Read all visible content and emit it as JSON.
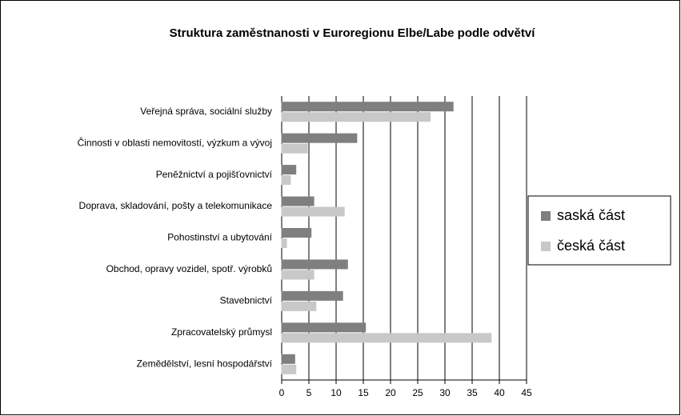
{
  "chart_data": {
    "type": "hbar",
    "title": "Struktura zaměstnanosti v Euroregionu Elbe/Labe podle odvětví",
    "categories": [
      "Veřejná správa, sociální služby",
      "Činnosti v oblasti nemovitostí, výzkum a vývoj",
      "Peněžnictví a pojišťovnictví",
      "Doprava, skladování, pošty a telekomunikace",
      "Pohostinství a ubytování",
      "Obchod, opravy vozidel, spotř. výrobků",
      "Stavebnictví",
      "Zpracovatelský průmysl",
      "Zemědělství, lesní hospodářství"
    ],
    "series": [
      {
        "name": "saská část",
        "color": "#7f7f7f",
        "values": [
          31.5,
          13.8,
          2.6,
          5.9,
          5.4,
          12.1,
          11.2,
          15.4,
          2.4
        ]
      },
      {
        "name": "česká část",
        "color": "#c8c8c8",
        "values": [
          27.3,
          4.7,
          1.6,
          11.5,
          0.9,
          5.9,
          6.3,
          38.5,
          2.6
        ]
      }
    ],
    "xlim": [
      0,
      45
    ],
    "xticks": [
      0,
      5,
      10,
      15,
      20,
      25,
      30,
      35,
      40,
      45
    ],
    "grid": true,
    "legend": "right"
  }
}
